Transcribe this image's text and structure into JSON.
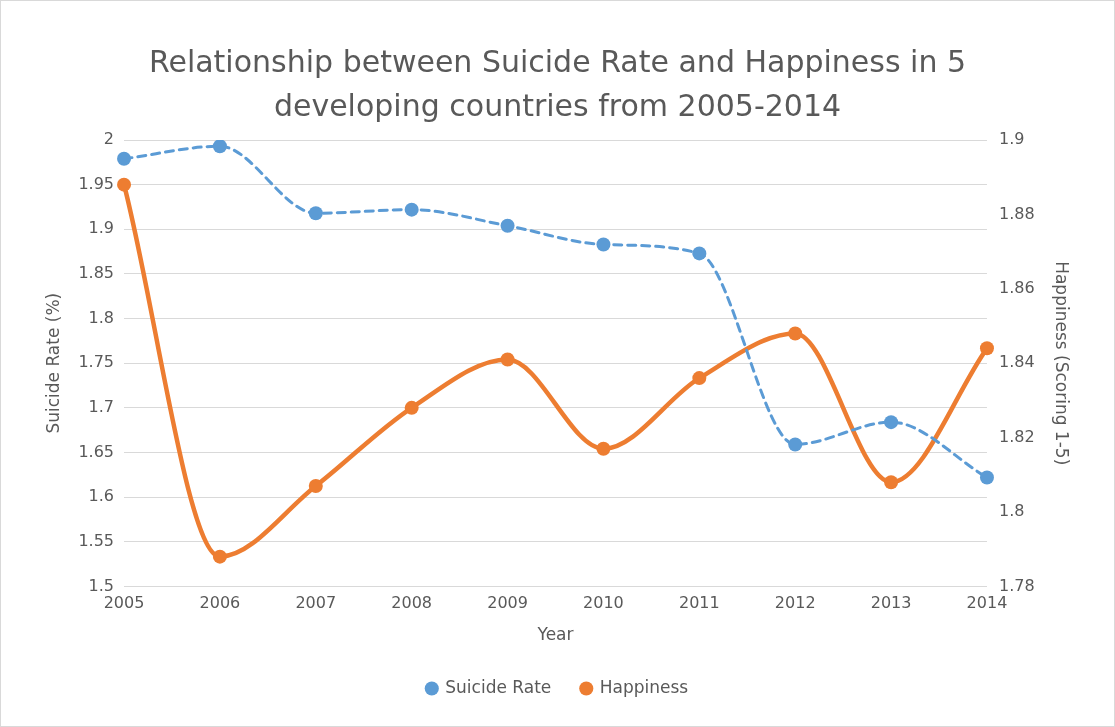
{
  "chart_data": {
    "type": "line",
    "title": "Relationship between Suicide Rate and Happiness in 5 developing countries from 2005-2014",
    "categories": [
      "2005",
      "2006",
      "2007",
      "2008",
      "2009",
      "2010",
      "2011",
      "2012",
      "2013",
      "2014"
    ],
    "xlabel": "Year",
    "ylabel": "Suicide Rate (%)",
    "y2label": "Happiness (Scoring 1-5)",
    "ylim": [
      1.5,
      2
    ],
    "yticks": [
      1.5,
      1.55,
      1.6,
      1.65,
      1.7,
      1.75,
      1.8,
      1.85,
      1.9,
      1.95,
      2
    ],
    "y2lim": [
      1.78,
      1.9
    ],
    "y2ticks": [
      1.78,
      1.8,
      1.82,
      1.84,
      1.86,
      1.88,
      1.9
    ],
    "grid": "y",
    "legend": "bottom",
    "marker": "circle",
    "series": [
      {
        "name": "Suicide Rate",
        "color": "#5b9bd5",
        "line_style": "dashed",
        "values": [
          1.979,
          1.993,
          1.918,
          1.922,
          1.904,
          1.883,
          1.873,
          1.659,
          1.684,
          1.622
        ]
      },
      {
        "name": "Happiness",
        "color": "#ed7d31",
        "line_style": "solid",
        "axis": "y2",
        "values": [
          1.888,
          1.788,
          1.807,
          1.828,
          1.841,
          1.817,
          1.836,
          1.848,
          1.808,
          1.844
        ]
      }
    ]
  }
}
